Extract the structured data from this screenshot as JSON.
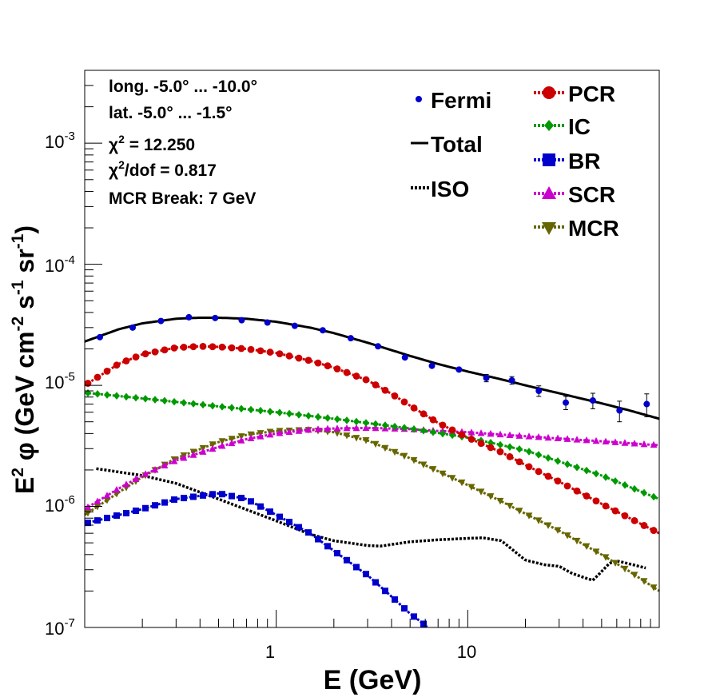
{
  "chart_data": {
    "type": "scatter",
    "xscale": "log",
    "yscale": "log",
    "xlim": [
      0.1,
      100
    ],
    "ylim": [
      1e-07,
      0.004
    ],
    "xlabel": "E (GeV)",
    "ylabel_main": "E",
    "ylabel_sup": "2",
    "ylabel_rest": " φ (GeV cm",
    "ylabel_parts": [
      "E",
      "2",
      " φ (GeV cm",
      "-2",
      " s",
      "-1",
      " sr",
      "-1",
      ")"
    ],
    "x_ticks": [
      {
        "value": 1,
        "label": "1"
      },
      {
        "value": 10,
        "label": "10"
      }
    ],
    "y_ticks": [
      {
        "value": 1e-07,
        "base": "10",
        "exp": "-7"
      },
      {
        "value": 1e-06,
        "base": "10",
        "exp": "-6"
      },
      {
        "value": 1e-05,
        "base": "10",
        "exp": "-5"
      },
      {
        "value": 0.0001,
        "base": "10",
        "exp": "-4"
      },
      {
        "value": 0.001,
        "base": "10",
        "exp": "-3"
      }
    ],
    "info": {
      "longitude": "long. -5.0° ... -10.0°",
      "latitude": "lat. -5.0° ... -1.5°",
      "chi2_symbol": "χ",
      "chi2_sup": "2",
      "chi2_value": " = 12.250",
      "chi2dof_value": "/dof = 0.817",
      "mcr_break": "MCR Break:  7 GeV"
    },
    "legend_left": [
      {
        "name": "Fermi",
        "style": "points",
        "color": "#0000cc"
      },
      {
        "name": "Total",
        "style": "solid",
        "color": "#000000"
      },
      {
        "name": "ISO",
        "style": "dotted",
        "color": "#000000"
      }
    ],
    "legend_right": [
      {
        "name": "PCR",
        "marker": "circle",
        "color": "#cc0000"
      },
      {
        "name": "IC",
        "marker": "diamond",
        "color": "#009900"
      },
      {
        "name": "BR",
        "marker": "square",
        "color": "#0000cc"
      },
      {
        "name": "SCR",
        "marker": "triangle-up",
        "color": "#cc00cc"
      },
      {
        "name": "MCR",
        "marker": "triangle-down",
        "color": "#666600"
      }
    ],
    "fermi": {
      "x": [
        0.12,
        0.178,
        0.25,
        0.35,
        0.48,
        0.66,
        0.9,
        1.25,
        1.75,
        2.45,
        3.4,
        4.7,
        6.5,
        9.0,
        12.5,
        17.0,
        23.5,
        32.5,
        45.0,
        62.0,
        86.0
      ],
      "y": [
        2.5e-05,
        3e-05,
        3.4e-05,
        3.65e-05,
        3.6e-05,
        3.45e-05,
        3.3e-05,
        3.1e-05,
        2.85e-05,
        2.45e-05,
        2.1e-05,
        1.7e-05,
        1.45e-05,
        1.35e-05,
        1.15e-05,
        1.1e-05,
        9e-06,
        7.2e-06,
        7.5e-06,
        6.2e-06,
        7e-06
      ],
      "err": [
        0,
        0,
        0,
        0,
        0,
        0,
        0,
        0,
        0,
        0,
        0,
        0,
        0,
        0,
        8e-07,
        8e-07,
        9e-07,
        9e-07,
        1.1e-06,
        1.2e-06,
        1.5e-06
      ]
    },
    "series": [
      {
        "name": "Total",
        "color": "#000000",
        "style": "solid",
        "marker": "none",
        "x": [
          0.1,
          0.15,
          0.2,
          0.3,
          0.4,
          0.5,
          0.7,
          1,
          1.5,
          2,
          3,
          5,
          7,
          10,
          15,
          20,
          30,
          50,
          70,
          100
        ],
        "y": [
          2.3e-05,
          2.9e-05,
          3.25e-05,
          3.55e-05,
          3.62e-05,
          3.62e-05,
          3.55e-05,
          3.35e-05,
          3e-05,
          2.7e-05,
          2.25e-05,
          1.75e-05,
          1.5e-05,
          1.3e-05,
          1.12e-05,
          1e-05,
          8.6e-06,
          7.1e-06,
          6.2e-06,
          5.3e-06
        ]
      },
      {
        "name": "PCR",
        "color": "#cc0000",
        "style": "dashed",
        "marker": "circle",
        "x": [
          0.1,
          0.15,
          0.2,
          0.3,
          0.4,
          0.5,
          0.7,
          1,
          1.5,
          2,
          3,
          4,
          5,
          7,
          10,
          15,
          20,
          30,
          50,
          70,
          100
        ],
        "y": [
          1e-05,
          1.5e-05,
          1.8e-05,
          2.05e-05,
          2.1e-05,
          2.08e-05,
          2e-05,
          1.85e-05,
          1.6e-05,
          1.4e-05,
          1.1e-05,
          8.5e-06,
          6.8e-06,
          4.9e-06,
          3.7e-06,
          2.8e-06,
          2.2e-06,
          1.6e-06,
          1.05e-06,
          8e-07,
          6e-07
        ]
      },
      {
        "name": "IC",
        "color": "#009900",
        "style": "dashed",
        "marker": "diamond",
        "x": [
          0.1,
          0.2,
          0.5,
          1,
          2,
          5,
          10,
          20,
          50,
          100
        ],
        "y": [
          8.7e-06,
          7.8e-06,
          6.7e-06,
          6e-06,
          5.3e-06,
          4.4e-06,
          3.7e-06,
          2.9e-06,
          1.8e-06,
          1.15e-06
        ]
      },
      {
        "name": "BR",
        "color": "#0000cc",
        "style": "dashed",
        "marker": "square",
        "x": [
          0.1,
          0.2,
          0.3,
          0.5,
          0.7,
          1,
          1.5,
          2,
          3,
          4,
          5,
          6.5
        ],
        "y": [
          7.2e-07,
          9.5e-07,
          1.15e-06,
          1.28e-06,
          1.15e-06,
          8.5e-07,
          6e-07,
          4.3e-07,
          2.7e-07,
          1.8e-07,
          1.3e-07,
          9.5e-08
        ]
      },
      {
        "name": "SCR",
        "color": "#cc00cc",
        "style": "dashed",
        "marker": "triangle-up",
        "x": [
          0.1,
          0.15,
          0.2,
          0.3,
          0.5,
          0.7,
          1,
          1.5,
          2,
          3,
          5,
          7,
          10,
          20,
          50,
          100
        ],
        "y": [
          9.5e-07,
          1.4e-06,
          1.8e-06,
          2.4e-06,
          3.1e-06,
          3.6e-06,
          4e-06,
          4.3e-06,
          4.4e-06,
          4.45e-06,
          4.35e-06,
          4.2e-06,
          4.1e-06,
          3.8e-06,
          3.45e-06,
          3.2e-06
        ]
      },
      {
        "name": "MCR",
        "color": "#666600",
        "style": "dashed",
        "marker": "triangle-down",
        "x": [
          0.1,
          0.15,
          0.2,
          0.3,
          0.5,
          0.7,
          1,
          1.5,
          2,
          3,
          5,
          7,
          10,
          15,
          20,
          30,
          50,
          70,
          100
        ],
        "y": [
          8.5e-07,
          1.3e-06,
          1.75e-06,
          2.5e-06,
          3.4e-06,
          3.9e-06,
          4.2e-06,
          4.3e-06,
          4.1e-06,
          3.5e-06,
          2.5e-06,
          1.95e-06,
          1.5e-06,
          1.1e-06,
          8.7e-07,
          6.3e-07,
          4e-07,
          2.9e-07,
          2e-07
        ]
      },
      {
        "name": "ISO",
        "color": "#000000",
        "style": "dotted",
        "marker": "none",
        "x": [
          0.115,
          0.2,
          0.3,
          0.5,
          1,
          1.5,
          2,
          3,
          3.5,
          5,
          7,
          10,
          12,
          15,
          20,
          25,
          30,
          35,
          40,
          45,
          50,
          55,
          60,
          70,
          85
        ],
        "y": [
          2.05e-06,
          1.8e-06,
          1.55e-06,
          1.15e-06,
          7.6e-07,
          5.9e-07,
          5.2e-07,
          4.75e-07,
          4.7e-07,
          5.1e-07,
          5.3e-07,
          5.45e-07,
          5.5e-07,
          5.2e-07,
          3.6e-07,
          3.3e-07,
          3.2e-07,
          2.8e-07,
          2.6e-07,
          2.45e-07,
          2.9e-07,
          3.4e-07,
          3.55e-07,
          3.35e-07,
          3.1e-07
        ]
      }
    ]
  }
}
